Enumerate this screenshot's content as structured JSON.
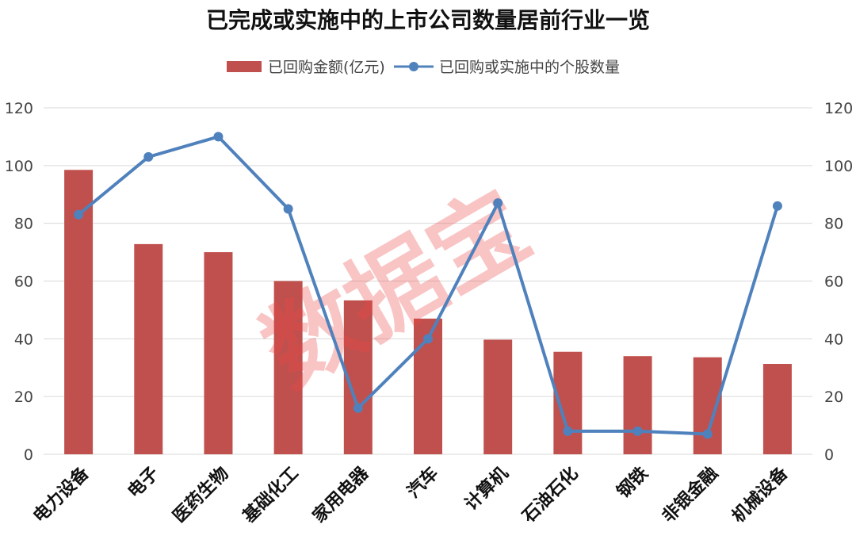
{
  "chart_data": {
    "type": "bar+line",
    "title": "已完成或实施中的上市公司数量居前行业一览",
    "categories": [
      "电力设备",
      "电子",
      "医药生物",
      "基础化工",
      "家用电器",
      "汽车",
      "计算机",
      "石油石化",
      "钢铁",
      "非银金融",
      "机械设备"
    ],
    "series": [
      {
        "name": "已回购金额(亿元)",
        "type": "bar",
        "axis": "left",
        "color": "#c0504d",
        "values": [
          98.5,
          72.8,
          70.0,
          60.0,
          53.3,
          47.0,
          39.7,
          35.5,
          34.0,
          33.6,
          31.3
        ]
      },
      {
        "name": "已回购或实施中的个股数量",
        "type": "line",
        "axis": "right",
        "color": "#4f81bd",
        "values": [
          83,
          103,
          110,
          85,
          16,
          40,
          87,
          8,
          8,
          7,
          86
        ]
      }
    ],
    "y_left": {
      "min": 0,
      "max": 120,
      "ticks": [
        "0",
        "20",
        "40",
        "60",
        "80",
        "100",
        "120"
      ]
    },
    "y_right": {
      "min": 0,
      "max": 120,
      "ticks": [
        "0",
        "20",
        "40",
        "60",
        "80",
        "100",
        "120"
      ]
    },
    "grid": true,
    "legend_position": "top-center",
    "watermark": "数据宝"
  }
}
